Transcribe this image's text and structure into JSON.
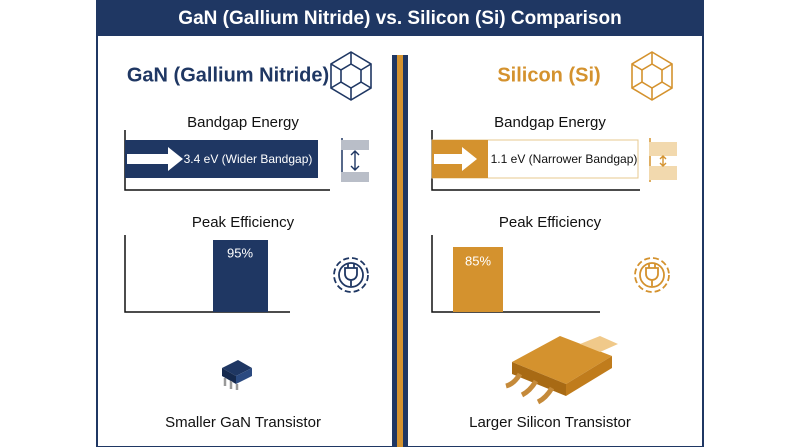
{
  "header": {
    "title": "GaN (Gallium Nitride) vs. Silicon (Si) Comparison"
  },
  "panels": [
    {
      "title": "GaN (Gallium Nitride)",
      "bandgap_label": "Bandgap Energy",
      "bandgap_text": "3.4 eV (Wider Bandgap)",
      "efficiency_label": "Peak Efficiency",
      "efficiency_text": "95%",
      "caption": "Smaller GaN Transistor"
    },
    {
      "title": "Silicon (Si)",
      "bandgap_label": "Bandgap Energy",
      "bandgap_text": "1.1 eV (Narrower Bandgap)",
      "efficiency_label": "Peak Efficiency",
      "efficiency_text": "85%",
      "caption": "Larger Silicon Transistor"
    }
  ]
}
